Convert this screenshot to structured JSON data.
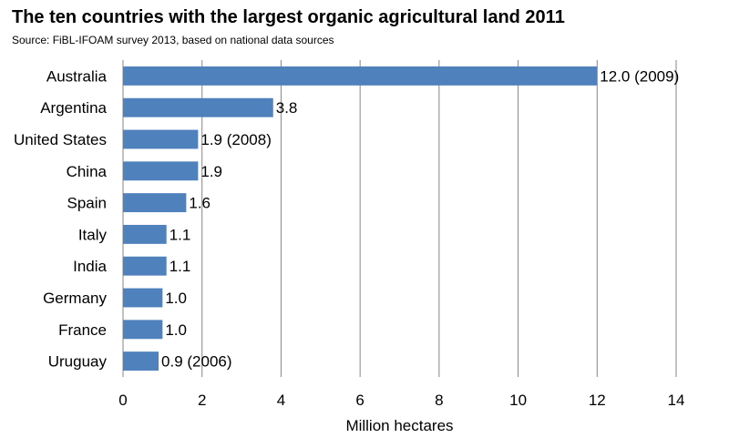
{
  "title": "The ten countries with the largest organic agricultural land 2011",
  "subtitle": "Source: FiBL-IFOAM survey 2013, based on national data sources",
  "chart_data": {
    "type": "bar",
    "orientation": "horizontal",
    "title": "The ten countries with the largest organic agricultural land 2011",
    "subtitle": "Source: FiBL-IFOAM survey 2013, based on national data sources",
    "xlabel": "Million hectares",
    "ylabel": "",
    "xlim": [
      0,
      14
    ],
    "xticks": [
      0,
      2,
      4,
      6,
      8,
      10,
      12,
      14
    ],
    "grid": true,
    "legend": "none",
    "bar_color": "#4F81BD",
    "categories": [
      "Australia",
      "Argentina",
      "United States",
      "China",
      "Spain",
      "Italy",
      "India",
      "Germany",
      "France",
      "Uruguay"
    ],
    "values": [
      12.0,
      3.8,
      1.9,
      1.9,
      1.6,
      1.1,
      1.1,
      1.0,
      1.0,
      0.9
    ],
    "data_labels": [
      "12.0 (2009)",
      "3.8",
      "1.9 (2008)",
      "1.9",
      "1.6",
      "1.1",
      "1.1",
      "1.0",
      "1.0",
      "0.9 (2006)"
    ]
  }
}
